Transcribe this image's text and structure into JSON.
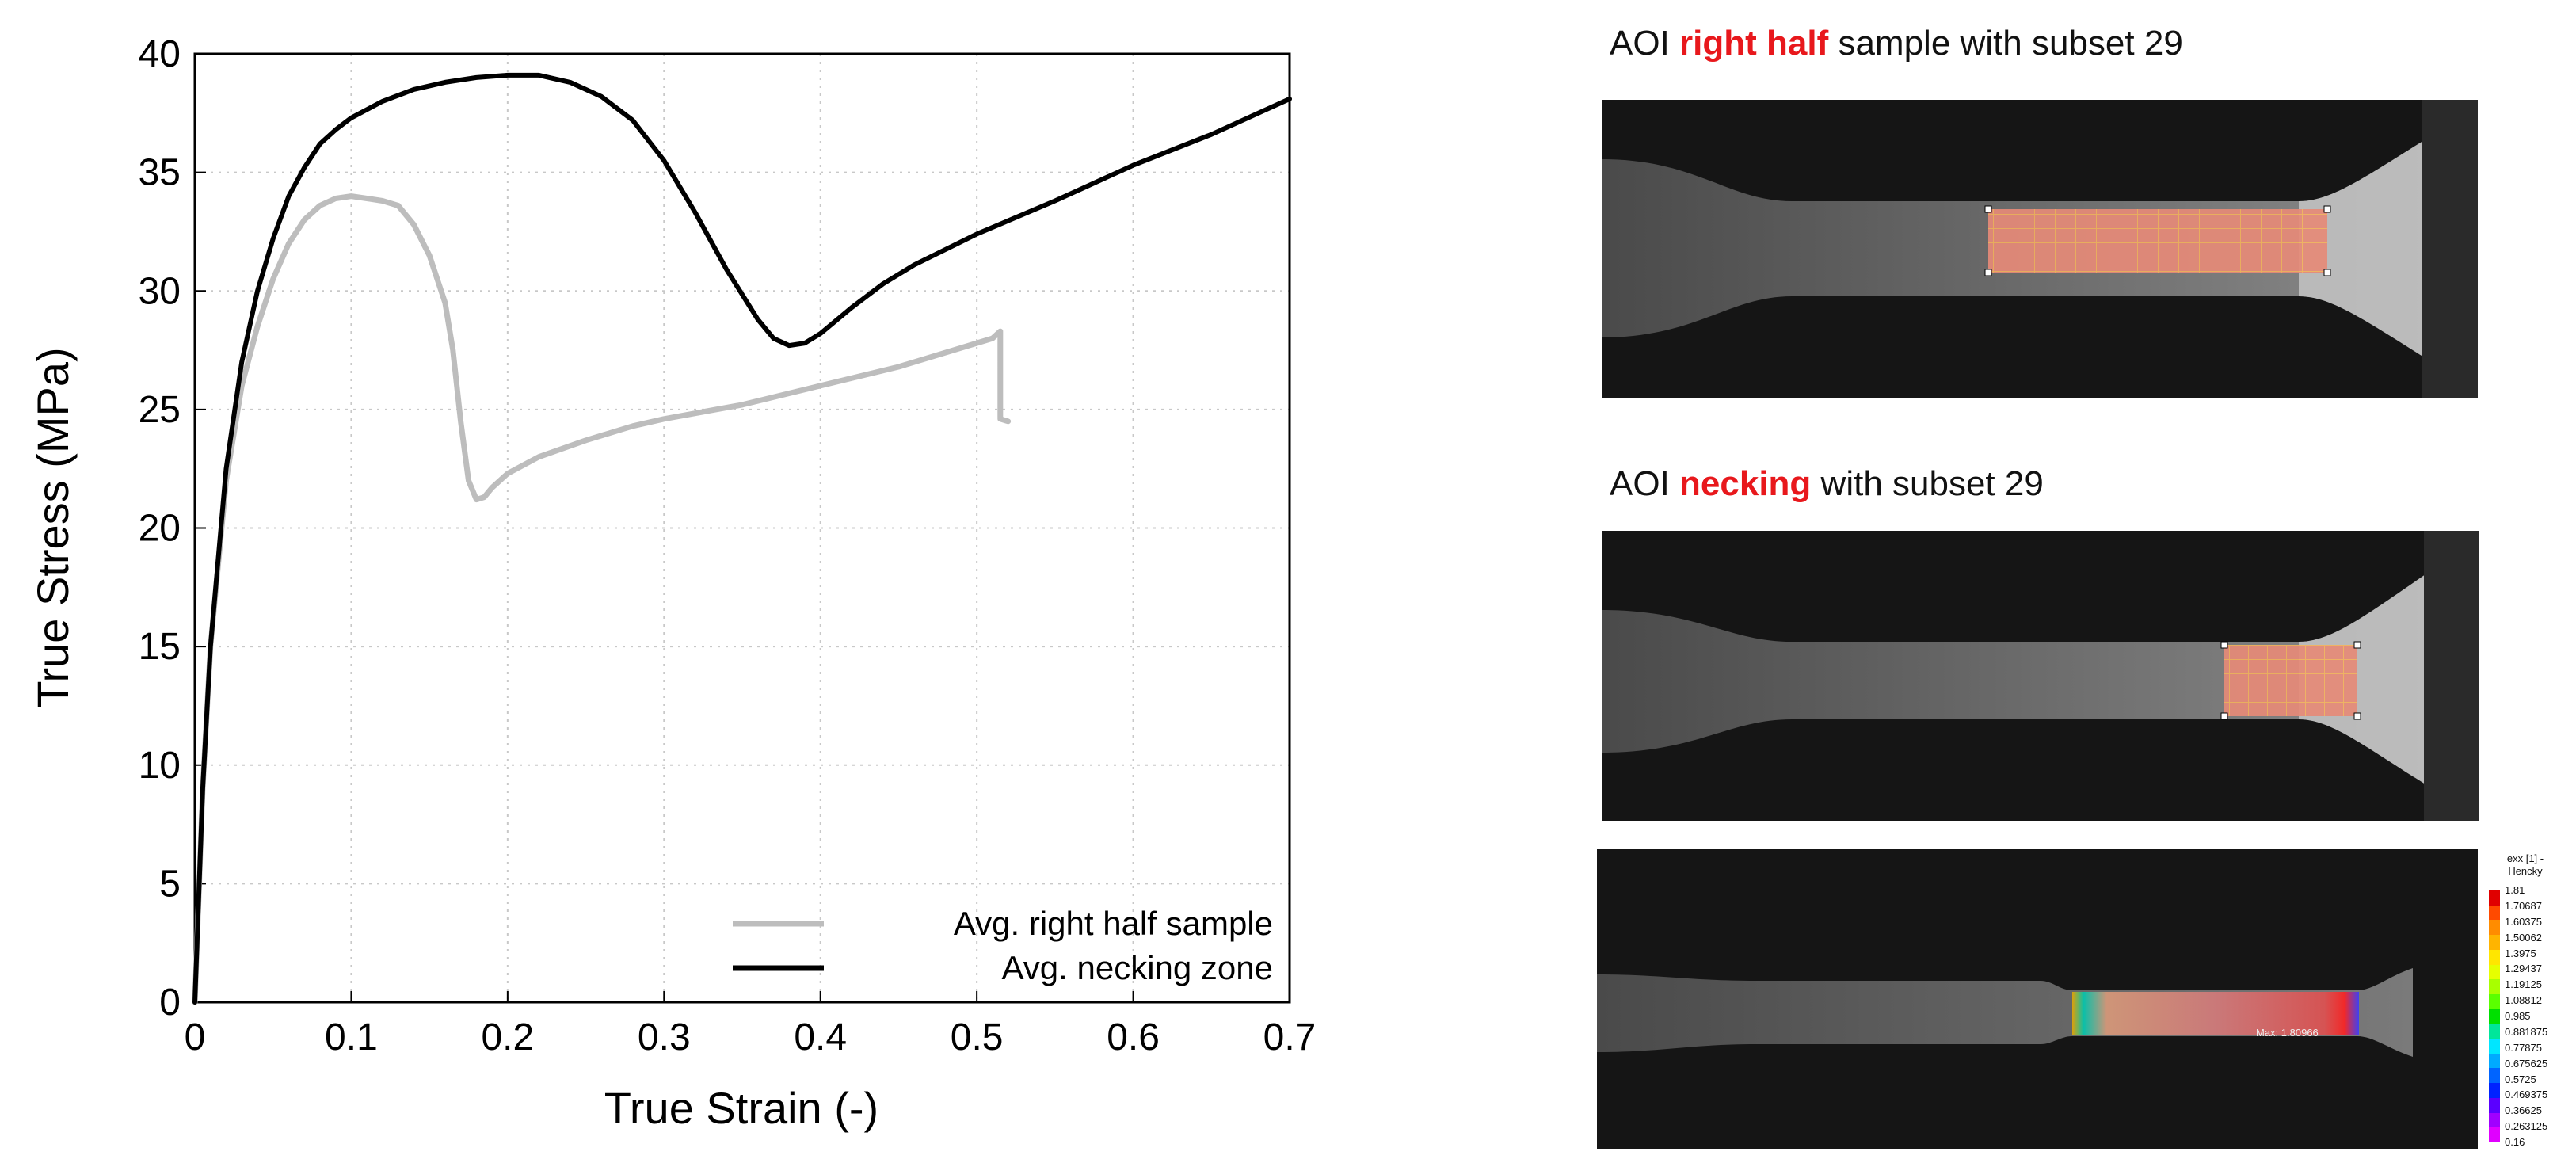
{
  "chart_data": {
    "type": "line",
    "xlabel": "True Strain (-)",
    "ylabel": "True Stress (MPa)",
    "xlim": [
      0,
      0.7
    ],
    "ylim": [
      0,
      40
    ],
    "xticks": [
      "0",
      "0.1",
      "0.2",
      "0.3",
      "0.4",
      "0.5",
      "0.6",
      "0.7"
    ],
    "yticks": [
      "0",
      "5",
      "10",
      "15",
      "20",
      "25",
      "30",
      "35",
      "40"
    ],
    "grid": true,
    "legend_position": "bottom-right",
    "series": [
      {
        "name": "Avg. right half sample",
        "color": "#bdbdbd",
        "x": [
          0,
          0.005,
          0.01,
          0.02,
          0.03,
          0.04,
          0.05,
          0.06,
          0.07,
          0.08,
          0.09,
          0.1,
          0.11,
          0.12,
          0.13,
          0.14,
          0.15,
          0.16,
          0.165,
          0.17,
          0.175,
          0.18,
          0.185,
          0.19,
          0.2,
          0.22,
          0.25,
          0.28,
          0.3,
          0.35,
          0.4,
          0.45,
          0.5,
          0.51,
          0.515,
          0.515,
          0.52
        ],
        "y": [
          0,
          9,
          15,
          22,
          26,
          28.5,
          30.5,
          32,
          33,
          33.6,
          33.9,
          34,
          33.9,
          33.8,
          33.6,
          32.8,
          31.5,
          29.5,
          27.5,
          24.5,
          22,
          21.2,
          21.3,
          21.7,
          22.3,
          23,
          23.7,
          24.3,
          24.6,
          25.2,
          26,
          26.8,
          27.8,
          28,
          28.3,
          24.6,
          24.5
        ]
      },
      {
        "name": "Avg. necking zone",
        "color": "#000000",
        "x": [
          0,
          0.005,
          0.01,
          0.02,
          0.03,
          0.04,
          0.05,
          0.06,
          0.07,
          0.08,
          0.09,
          0.1,
          0.12,
          0.14,
          0.16,
          0.18,
          0.2,
          0.22,
          0.24,
          0.26,
          0.28,
          0.3,
          0.32,
          0.34,
          0.36,
          0.37,
          0.38,
          0.39,
          0.4,
          0.42,
          0.44,
          0.46,
          0.5,
          0.55,
          0.6,
          0.65,
          0.7
        ],
        "y": [
          0,
          9,
          15,
          22.5,
          27,
          30,
          32.2,
          34,
          35.2,
          36.2,
          36.8,
          37.3,
          38,
          38.5,
          38.8,
          39,
          39.1,
          39.1,
          38.8,
          38.2,
          37.2,
          35.5,
          33.3,
          30.9,
          28.8,
          28,
          27.7,
          27.8,
          28.2,
          29.3,
          30.3,
          31.1,
          32.4,
          33.8,
          35.3,
          36.6,
          38.1
        ]
      }
    ]
  },
  "panels": {
    "top_title": {
      "prefix": "AOI ",
      "highlight": "right half",
      "suffix": " sample with subset 29"
    },
    "middle_title": {
      "prefix": "AOI ",
      "highlight": "necking",
      "suffix": " with subset 29"
    },
    "contour": {
      "max_label": "Max: 1.80966",
      "colorbar_title_1": "exx [1] -",
      "colorbar_title_2": "Hencky",
      "colorbar_ticks": [
        "1.81",
        "1.70687",
        "1.60375",
        "1.50062",
        "1.3975",
        "1.29437",
        "1.19125",
        "1.08812",
        "0.985",
        "0.881875",
        "0.77875",
        "0.675625",
        "0.5725",
        "0.469375",
        "0.36625",
        "0.263125",
        "0.16"
      ],
      "colorbar_colors": [
        "#e00000",
        "#ff4a00",
        "#ff8c00",
        "#ffb400",
        "#ffe600",
        "#e6ff00",
        "#a8ff00",
        "#5aff00",
        "#00e000",
        "#00e69a",
        "#00e6ff",
        "#00aaff",
        "#0064ff",
        "#0022ff",
        "#5a00ff",
        "#a000ff",
        "#e000ff"
      ]
    }
  }
}
